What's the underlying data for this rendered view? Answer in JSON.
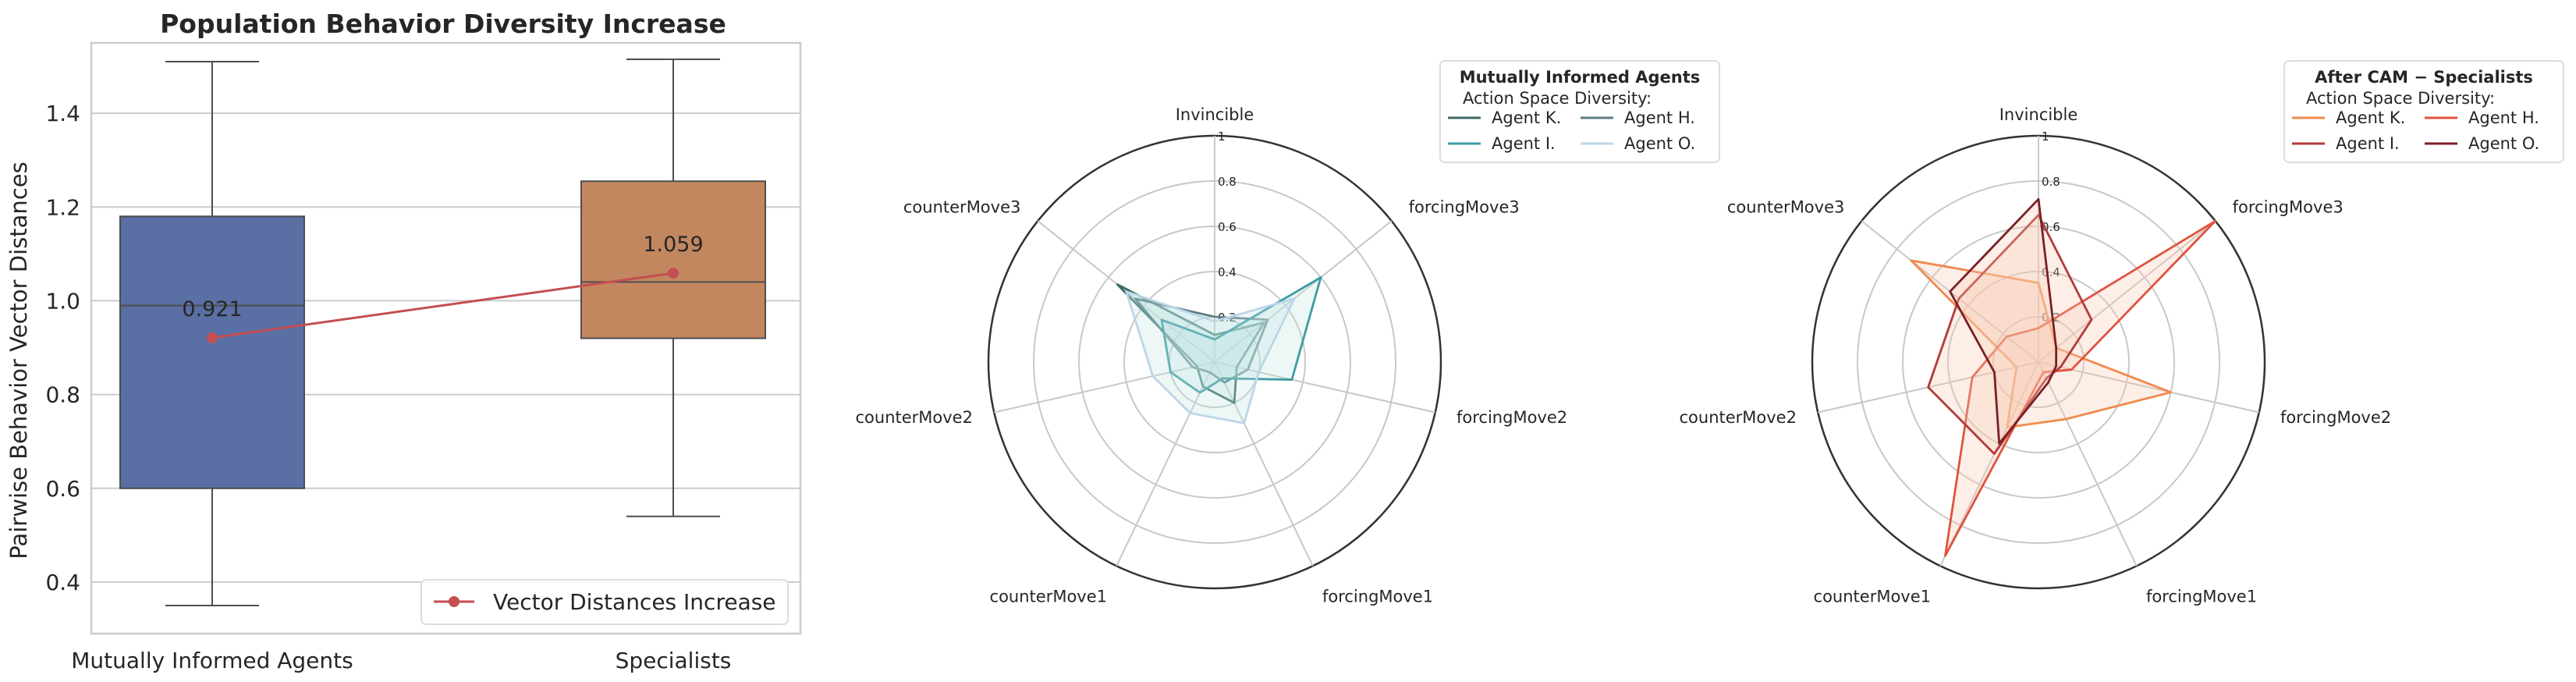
{
  "colors": {
    "box_blue": "#5a6fa3",
    "box_orange": "#c3875f",
    "trend_red": "#c44e52",
    "grid": "#cccccc",
    "teal_fill": "#bfe6e2",
    "salmon_fill": "#f7c9b3"
  },
  "chart_data": [
    {
      "type": "box",
      "title": "Population Behavior Diversity Increase",
      "xlabel": "",
      "ylabel": "Pairwise Behavior Vector Distances",
      "categories": [
        "Mutually Informed Agents",
        "Specialists"
      ],
      "ylim": [
        0.29,
        1.55
      ],
      "yticks": [
        0.4,
        0.6,
        0.8,
        1.0,
        1.2,
        1.4
      ],
      "ytick_labels": [
        "0.4",
        "0.6",
        "0.8",
        "1.0",
        "1.2",
        "1.4"
      ],
      "grid": true,
      "boxes": [
        {
          "category": "Mutually Informed Agents",
          "whisker_low": 0.35,
          "q1": 0.6,
          "median": 0.99,
          "q3": 1.18,
          "whisker_high": 1.51
        },
        {
          "category": "Specialists",
          "whisker_low": 0.54,
          "q1": 0.92,
          "median": 1.04,
          "q3": 1.255,
          "whisker_high": 1.515
        }
      ],
      "trend_series": {
        "name": "Vector Distances Increase",
        "values": [
          0.921,
          1.059
        ],
        "labels": [
          "0.921",
          "1.059"
        ]
      },
      "legend_position": "lower-right"
    },
    {
      "type": "radar",
      "title": "",
      "axes": [
        "Invincible",
        "forcingMove3",
        "forcingMove2",
        "forcingMove1",
        "counterMove1",
        "counterMove2",
        "counterMove3"
      ],
      "rlim": [
        0,
        1
      ],
      "rticks": [
        0.2,
        0.4,
        0.6,
        0.8,
        1.0
      ],
      "rtick_labels": [
        "0.2",
        "0.4",
        "0.6",
        "0.8",
        "1"
      ],
      "legend_title": "Mutually Informed Agents",
      "legend_subtitle": "Action Space Diversity:",
      "legend_position": "top-right",
      "series": [
        {
          "name": "Agent K.",
          "color": "#3d6b66",
          "values": [
            0.12,
            0.28,
            0.1,
            0.2,
            0.12,
            0.08,
            0.55
          ]
        },
        {
          "name": "Agent H.",
          "color": "#5e7d84",
          "values": [
            0.2,
            0.3,
            0.15,
            0.1,
            0.05,
            0.1,
            0.45
          ]
        },
        {
          "name": "Agent I.",
          "color": "#3e9ca3",
          "values": [
            0.1,
            0.6,
            0.35,
            0.08,
            0.15,
            0.2,
            0.3
          ]
        },
        {
          "name": "Agent O.",
          "color": "#bcd6e8",
          "values": [
            0.18,
            0.45,
            0.2,
            0.3,
            0.25,
            0.28,
            0.5
          ]
        }
      ]
    },
    {
      "type": "radar",
      "title": "",
      "axes": [
        "Invincible",
        "forcingMove3",
        "forcingMove2",
        "forcingMove1",
        "counterMove1",
        "counterMove2",
        "counterMove3"
      ],
      "rlim": [
        0,
        1
      ],
      "rticks": [
        0.2,
        0.4,
        0.6,
        0.8,
        1.0
      ],
      "rtick_labels": [
        "0.2",
        "0.4",
        "0.6",
        "0.8",
        "1"
      ],
      "legend_title": "After CAM  −  Specialists",
      "legend_subtitle": "Action Space Diversity:",
      "legend_position": "top-right",
      "series": [
        {
          "name": "Agent K.",
          "color": "#ef8a4d",
          "values": [
            0.35,
            0.1,
            0.6,
            0.28,
            0.32,
            0.1,
            0.72
          ]
        },
        {
          "name": "Agent H.",
          "color": "#e0533e",
          "values": [
            0.15,
            1.0,
            0.15,
            0.05,
            0.95,
            0.3,
            0.18
          ]
        },
        {
          "name": "Agent I.",
          "color": "#b23a3a",
          "values": [
            0.65,
            0.3,
            0.1,
            0.08,
            0.45,
            0.5,
            0.45
          ]
        },
        {
          "name": "Agent O.",
          "color": "#7a1f25",
          "values": [
            0.72,
            0.1,
            0.08,
            0.1,
            0.4,
            0.2,
            0.5
          ]
        }
      ]
    }
  ]
}
